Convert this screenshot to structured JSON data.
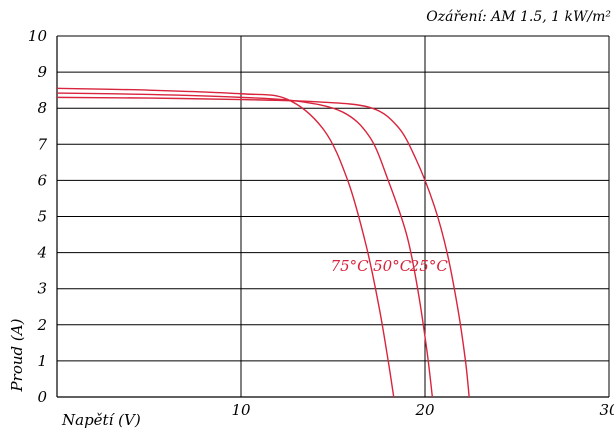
{
  "chart_data": {
    "type": "line",
    "annotation": "Ozáření: AM 1.5, 1 kW/m²",
    "xlabel": "Napětí (V)",
    "ylabel": "Proud (A)",
    "xlim": [
      0,
      30
    ],
    "ylim": [
      0,
      10
    ],
    "x_ticks": [
      "10",
      "20",
      "30"
    ],
    "y_ticks": [
      "0",
      "1",
      "2",
      "3",
      "4",
      "5",
      "6",
      "7",
      "8",
      "9",
      "10"
    ],
    "grid": true,
    "colors": {
      "curve": "#d8243c",
      "axis": "#000000",
      "grid": "#000000"
    },
    "series": [
      {
        "name": "25°C",
        "x": [
          0,
          5,
          10,
          14,
          17,
          18.5,
          19.5,
          20.5,
          21.2,
          21.8,
          22.2,
          22.4
        ],
        "y": [
          8.3,
          8.28,
          8.24,
          8.18,
          8.02,
          7.5,
          6.6,
          5.3,
          4.0,
          2.4,
          1.0,
          0
        ]
      },
      {
        "name": "50°C",
        "x": [
          0,
          5,
          10,
          13,
          15.5,
          17,
          18,
          19,
          19.6,
          20.1,
          20.4
        ],
        "y": [
          8.42,
          8.38,
          8.3,
          8.2,
          7.9,
          7.2,
          6.0,
          4.5,
          3.0,
          1.3,
          0
        ]
      },
      {
        "name": "75°C",
        "x": [
          0,
          5,
          10,
          12.5,
          14.5,
          15.8,
          16.8,
          17.5,
          18.0,
          18.3
        ],
        "y": [
          8.55,
          8.5,
          8.4,
          8.25,
          7.4,
          6.0,
          4.2,
          2.5,
          1.0,
          0
        ]
      }
    ],
    "series_label_order": [
      "75°C",
      "50°C",
      "25°C"
    ]
  }
}
